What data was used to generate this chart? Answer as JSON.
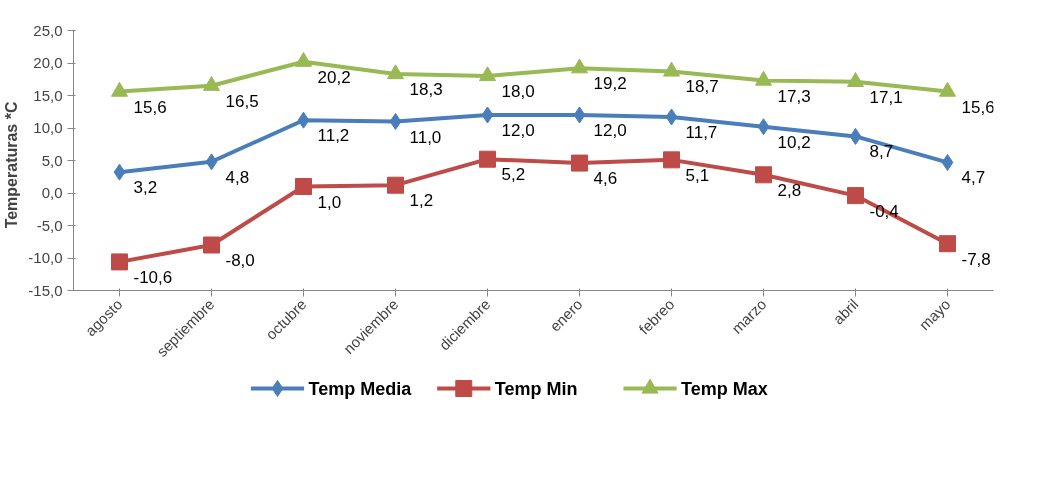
{
  "chart_data": {
    "type": "line",
    "ylabel": "Temperaturas   *C",
    "categories": [
      "agosto",
      "septiembre",
      "octubre",
      "noviembre",
      "diciembre",
      "enero",
      "febreo",
      "marzo",
      "abril",
      "mayo"
    ],
    "series": [
      {
        "name": "Temp Media",
        "color": "#4a7ebb",
        "marker": "diamond",
        "values": [
          3.2,
          4.8,
          11.2,
          11.0,
          12.0,
          12.0,
          11.7,
          10.2,
          8.7,
          4.7
        ],
        "value_labels": [
          "3,2",
          "4,8",
          "11,2",
          "11,0",
          "12,0",
          "12,0",
          "11,7",
          "10,2",
          "8,7",
          "4,7"
        ]
      },
      {
        "name": "Temp Min",
        "color": "#be4b48",
        "marker": "square",
        "values": [
          -10.6,
          -8.0,
          1.0,
          1.2,
          5.2,
          4.6,
          5.1,
          2.8,
          -0.4,
          -7.8
        ],
        "value_labels": [
          "-10,6",
          "-8,0",
          "1,0",
          "1,2",
          "5,2",
          "4,6",
          "5,1",
          "2,8",
          "-0,4",
          "-7,8"
        ]
      },
      {
        "name": "Temp Max",
        "color": "#98b954",
        "marker": "triangle",
        "values": [
          15.6,
          16.5,
          20.2,
          18.3,
          18.0,
          19.2,
          18.7,
          17.3,
          17.1,
          15.6
        ],
        "value_labels": [
          "15,6",
          "16,5",
          "20,2",
          "18,3",
          "18,0",
          "19,2",
          "18,7",
          "17,3",
          "17,1",
          "15,6"
        ]
      }
    ],
    "ylim": [
      -15,
      25
    ],
    "yticks": [
      {
        "value": -15,
        "label": "-15,0"
      },
      {
        "value": -10,
        "label": "-10,0"
      },
      {
        "value": -5,
        "label": "-5,0"
      },
      {
        "value": 0,
        "label": "0,0"
      },
      {
        "value": 5,
        "label": "5,0"
      },
      {
        "value": 10,
        "label": "10,0"
      },
      {
        "value": 15,
        "label": "15,0"
      },
      {
        "value": 20,
        "label": "20,0"
      },
      {
        "value": 25,
        "label": "25,0"
      }
    ],
    "grid": false,
    "legend": "bottom",
    "line_style": "solid"
  }
}
